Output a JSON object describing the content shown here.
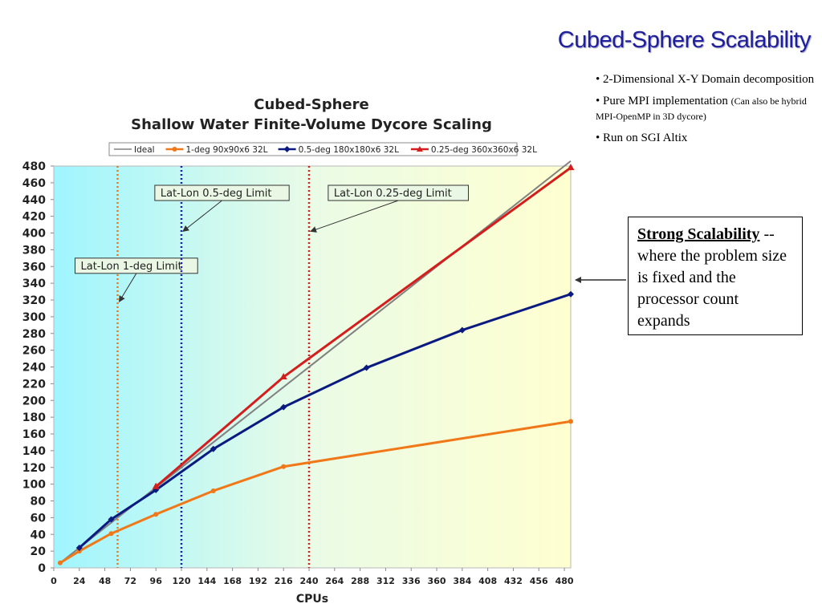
{
  "slide": {
    "title": "Cubed-Sphere Scalability",
    "bullets": [
      {
        "text": "• 2-Dimensional X-Y Domain decomposition",
        "note": ""
      },
      {
        "text": "• Pure MPI implementation",
        "note": "(Can also be hybrid MPI-OpenMP in 3D dycore)"
      },
      {
        "text": "• Run on SGI Altix",
        "note": ""
      }
    ],
    "callout": {
      "bold": "Strong Scalability",
      "rest": " -- where the problem size is fixed and the processor count expands"
    }
  },
  "chart_data": {
    "type": "line",
    "title": "Cubed-Sphere",
    "subtitle": "Shallow Water Finite-Volume Dycore Scaling",
    "xlabel": "CPUs",
    "ylabel": "",
    "xlim": [
      0,
      486
    ],
    "ylim": [
      0,
      480
    ],
    "xticks": [
      0,
      24,
      48,
      72,
      96,
      120,
      144,
      168,
      192,
      216,
      240,
      264,
      288,
      312,
      336,
      360,
      384,
      408,
      432,
      456,
      480
    ],
    "yticks": [
      0,
      20,
      40,
      60,
      80,
      100,
      120,
      140,
      160,
      180,
      200,
      220,
      240,
      260,
      280,
      300,
      320,
      340,
      360,
      380,
      400,
      420,
      440,
      460,
      480
    ],
    "grid": false,
    "legend_position": "top",
    "series": [
      {
        "name": "Ideal",
        "color": "#808080",
        "marker": "none",
        "x": [
          6,
          486
        ],
        "y": [
          6,
          486
        ]
      },
      {
        "name": "1-deg 90x90x6 32L",
        "color": "#f07818",
        "marker": "circle",
        "x": [
          6,
          24,
          54,
          96,
          150,
          216,
          486
        ],
        "y": [
          6,
          20,
          41,
          64,
          92,
          121,
          175
        ]
      },
      {
        "name": "0.5-deg 180x180x6 32L",
        "color": "#0a1a80",
        "marker": "diamond",
        "x": [
          24,
          54,
          96,
          150,
          216,
          294,
          384,
          486
        ],
        "y": [
          24,
          58,
          93,
          142,
          192,
          239,
          284,
          327
        ]
      },
      {
        "name": "0.25-deg 360x360x6 32L",
        "color": "#d41e1e",
        "marker": "triangle",
        "x": [
          96,
          216,
          486
        ],
        "y": [
          97,
          228,
          478
        ]
      }
    ],
    "vlines": [
      {
        "x": 60,
        "color": "#f07818",
        "label": "Lat-Lon 1-deg Limit",
        "label_at": [
          20,
          370
        ],
        "arrow_to_y": 318
      },
      {
        "x": 120,
        "color": "#1a1aa8",
        "label": "Lat-Lon 0.5-deg Limit",
        "label_at": [
          95,
          457
        ],
        "arrow_to_y": 402
      },
      {
        "x": 240,
        "color": "#cc2020",
        "label": "Lat-Lon 0.25-deg Limit",
        "label_at": [
          258,
          457
        ],
        "arrow_to_y": 402
      }
    ]
  }
}
